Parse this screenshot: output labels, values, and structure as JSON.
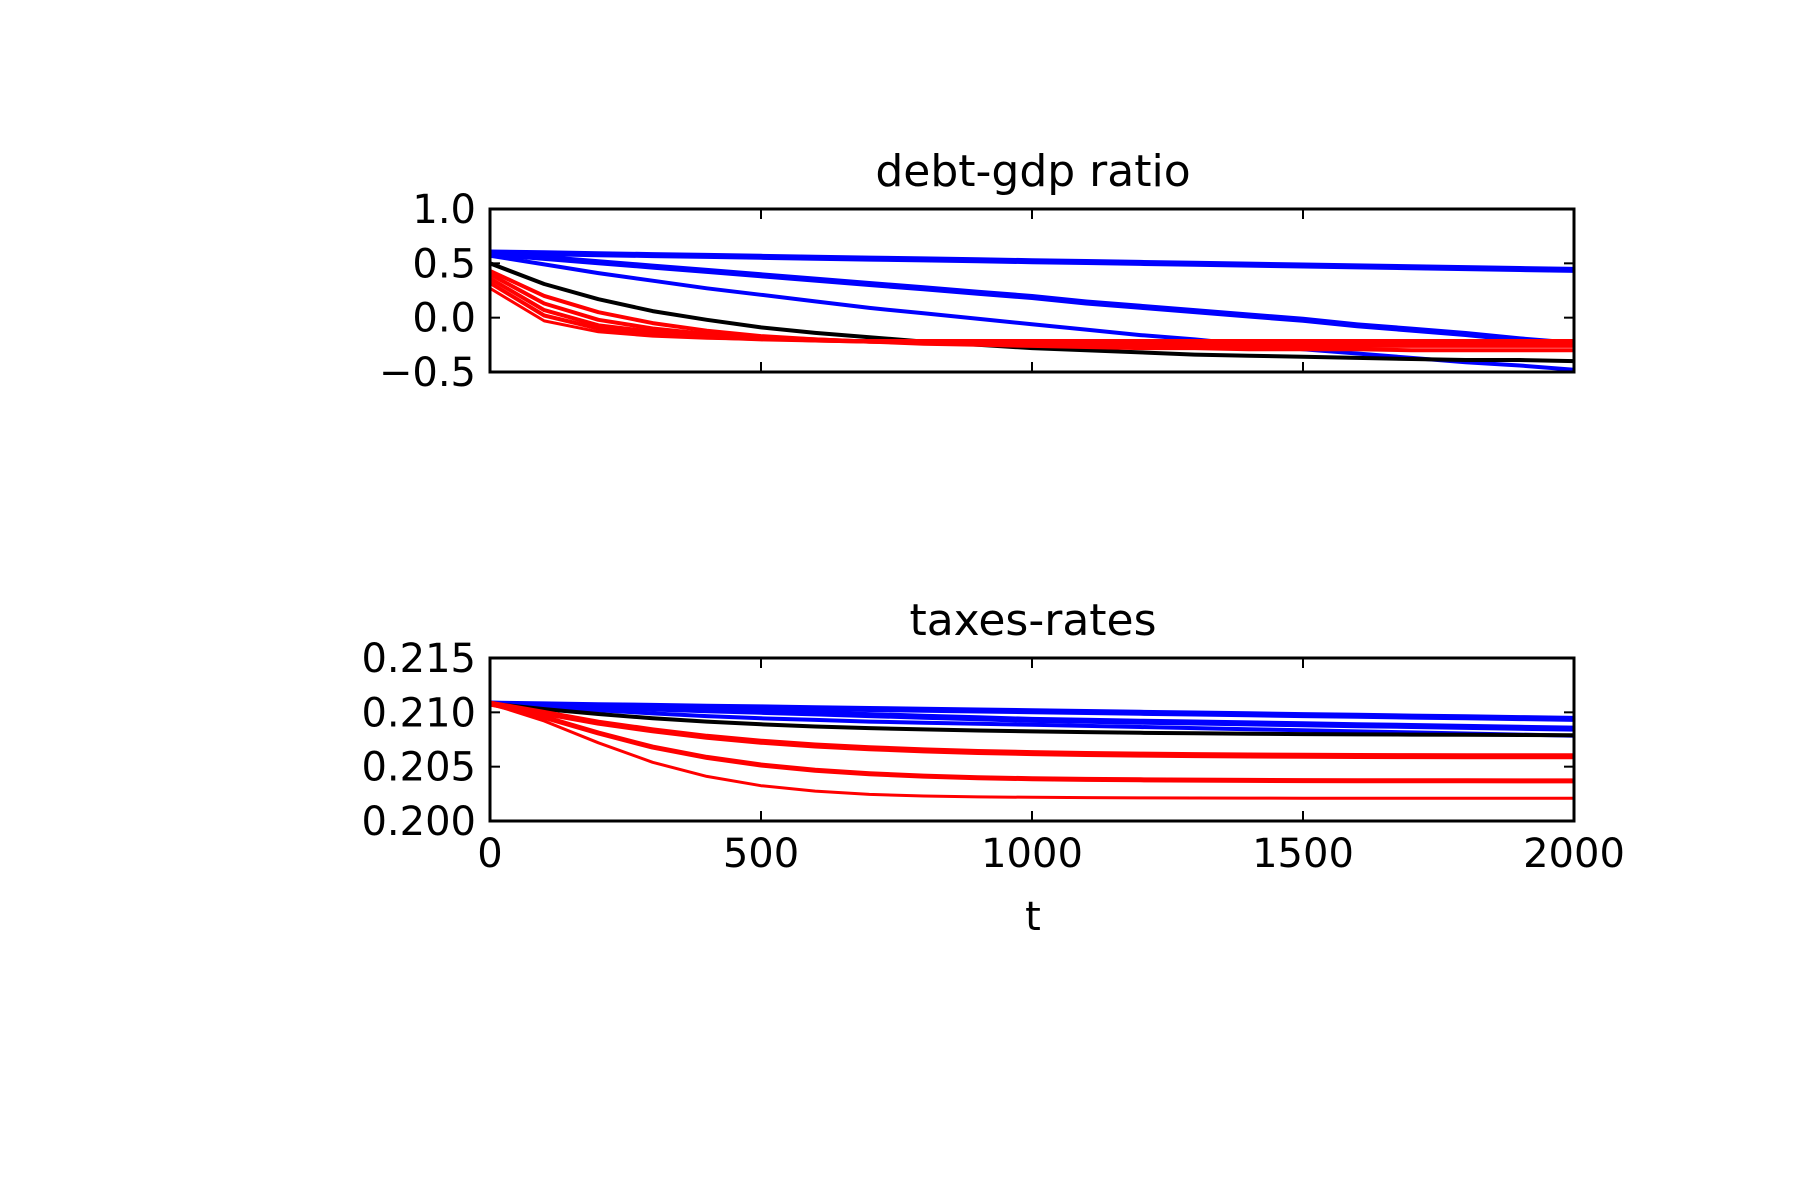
{
  "chart_data": [
    {
      "type": "line",
      "title": "debt-gdp ratio",
      "xlabel": "",
      "ylabel": "",
      "xlim": [
        0,
        2000
      ],
      "ylim": [
        -0.5,
        1.0
      ],
      "xticks": [
        0,
        500,
        1000,
        1500,
        2000
      ],
      "yticks": [
        -0.5,
        0.0,
        0.5,
        1.0
      ],
      "ytick_labels": [
        "−0.5",
        "0.0",
        "0.5",
        "1.0"
      ],
      "show_xtick_labels": false,
      "grid": false,
      "legend": "none",
      "x": [
        0,
        100,
        200,
        300,
        400,
        500,
        600,
        700,
        800,
        900,
        1000,
        1100,
        1200,
        1300,
        1400,
        1500,
        1600,
        1700,
        1800,
        1900,
        2000
      ],
      "series": [
        {
          "color": "#0000ff",
          "width": 6,
          "values": [
            0.6,
            0.592,
            0.584,
            0.576,
            0.568,
            0.56,
            0.552,
            0.544,
            0.536,
            0.528,
            0.52,
            0.512,
            0.504,
            0.496,
            0.488,
            0.48,
            0.472,
            0.464,
            0.456,
            0.448,
            0.44
          ]
        },
        {
          "color": "#0000ff",
          "width": 6,
          "values": [
            0.59,
            0.55,
            0.51,
            0.47,
            0.43,
            0.39,
            0.35,
            0.31,
            0.27,
            0.23,
            0.19,
            0.14,
            0.1,
            0.06,
            0.02,
            -0.02,
            -0.07,
            -0.11,
            -0.15,
            -0.2,
            -0.24
          ]
        },
        {
          "color": "#0000ff",
          "width": 4,
          "values": [
            0.57,
            0.49,
            0.41,
            0.34,
            0.27,
            0.21,
            0.15,
            0.09,
            0.04,
            -0.01,
            -0.06,
            -0.11,
            -0.16,
            -0.2,
            -0.25,
            -0.29,
            -0.33,
            -0.37,
            -0.41,
            -0.44,
            -0.48
          ]
        },
        {
          "color": "#000000",
          "width": 4,
          "values": [
            0.5,
            0.31,
            0.17,
            0.06,
            -0.02,
            -0.09,
            -0.14,
            -0.18,
            -0.22,
            -0.25,
            -0.28,
            -0.3,
            -0.32,
            -0.34,
            -0.35,
            -0.36,
            -0.37,
            -0.38,
            -0.39,
            -0.39,
            -0.4
          ]
        },
        {
          "color": "#ff0000",
          "width": 4,
          "values": [
            0.43,
            0.2,
            0.05,
            -0.05,
            -0.12,
            -0.17,
            -0.2,
            -0.22,
            -0.24,
            -0.25,
            -0.26,
            -0.27,
            -0.28,
            -0.28,
            -0.29,
            -0.29,
            -0.29,
            -0.3,
            -0.3,
            -0.3,
            -0.3
          ]
        },
        {
          "color": "#ff0000",
          "width": 4,
          "values": [
            0.4,
            0.13,
            -0.02,
            -0.1,
            -0.15,
            -0.18,
            -0.2,
            -0.22,
            -0.23,
            -0.24,
            -0.24,
            -0.25,
            -0.25,
            -0.25,
            -0.26,
            -0.26,
            -0.26,
            -0.26,
            -0.26,
            -0.26,
            -0.26
          ]
        },
        {
          "color": "#ff0000",
          "width": 4,
          "values": [
            0.36,
            0.07,
            -0.07,
            -0.13,
            -0.17,
            -0.19,
            -0.21,
            -0.22,
            -0.22,
            -0.23,
            -0.23,
            -0.23,
            -0.23,
            -0.23,
            -0.23,
            -0.23,
            -0.23,
            -0.23,
            -0.23,
            -0.23,
            -0.23
          ]
        },
        {
          "color": "#ff0000",
          "width": 4,
          "values": [
            0.32,
            0.02,
            -0.1,
            -0.15,
            -0.18,
            -0.2,
            -0.21,
            -0.22,
            -0.22,
            -0.22,
            -0.22,
            -0.22,
            -0.22,
            -0.22,
            -0.22,
            -0.22,
            -0.22,
            -0.22,
            -0.22,
            -0.22,
            -0.22
          ]
        },
        {
          "color": "#ff0000",
          "width": 3,
          "values": [
            0.27,
            -0.03,
            -0.13,
            -0.17,
            -0.19,
            -0.2,
            -0.21,
            -0.21,
            -0.21,
            -0.21,
            -0.21,
            -0.21,
            -0.21,
            -0.21,
            -0.21,
            -0.21,
            -0.21,
            -0.21,
            -0.21,
            -0.21,
            -0.21
          ]
        }
      ]
    },
    {
      "type": "line",
      "title": "taxes-rates",
      "xlabel": "t",
      "ylabel": "",
      "xlim": [
        0,
        2000
      ],
      "ylim": [
        0.2,
        0.215
      ],
      "xticks": [
        0,
        500,
        1000,
        1500,
        2000
      ],
      "yticks": [
        0.2,
        0.205,
        0.21,
        0.215
      ],
      "ytick_labels": [
        "0.200",
        "0.205",
        "0.210",
        "0.215"
      ],
      "show_xtick_labels": true,
      "grid": false,
      "legend": "none",
      "x": [
        0,
        100,
        200,
        300,
        400,
        500,
        600,
        700,
        800,
        900,
        1000,
        1100,
        1200,
        1300,
        1400,
        1500,
        1600,
        1700,
        1800,
        1900,
        2000
      ],
      "series": [
        {
          "color": "#0000ff",
          "width": 6,
          "values": [
            0.2108,
            0.21073,
            0.21066,
            0.21059,
            0.21052,
            0.21045,
            0.21038,
            0.21031,
            0.21024,
            0.21017,
            0.2101,
            0.21003,
            0.20996,
            0.20989,
            0.20982,
            0.20975,
            0.20968,
            0.20961,
            0.20954,
            0.20947,
            0.2094
          ]
        },
        {
          "color": "#0000ff",
          "width": 6,
          "values": [
            0.2108,
            0.21065,
            0.2105,
            0.21035,
            0.2102,
            0.21005,
            0.2099,
            0.20975,
            0.2096,
            0.20945,
            0.2093,
            0.20922,
            0.20914,
            0.20906,
            0.20898,
            0.2089,
            0.20882,
            0.20874,
            0.20866,
            0.20858,
            0.2085
          ]
        },
        {
          "color": "#0000ff",
          "width": 4,
          "values": [
            0.2108,
            0.2105,
            0.2102,
            0.2099,
            0.20965,
            0.20945,
            0.2093,
            0.20915,
            0.20905,
            0.20895,
            0.20885,
            0.20875,
            0.20865,
            0.20855,
            0.20845,
            0.20835,
            0.20825,
            0.20815,
            0.20805,
            0.20795,
            0.20785
          ]
        },
        {
          "color": "#000000",
          "width": 4,
          "values": [
            0.2108,
            0.2103,
            0.20985,
            0.20945,
            0.20915,
            0.2089,
            0.2087,
            0.20855,
            0.20843,
            0.20833,
            0.20825,
            0.20818,
            0.20812,
            0.20807,
            0.20803,
            0.208,
            0.20797,
            0.20795,
            0.20793,
            0.20791,
            0.2079
          ]
        },
        {
          "color": "#ff0000",
          "width": 6,
          "values": [
            0.2108,
            0.20995,
            0.20905,
            0.20835,
            0.20775,
            0.2073,
            0.20695,
            0.2067,
            0.2065,
            0.20635,
            0.20625,
            0.20617,
            0.20611,
            0.20606,
            0.20603,
            0.206,
            0.20598,
            0.20597,
            0.20596,
            0.20595,
            0.20595
          ]
        },
        {
          "color": "#ff0000",
          "width": 5,
          "values": [
            0.2108,
            0.20955,
            0.2081,
            0.2068,
            0.20585,
            0.20515,
            0.20467,
            0.20435,
            0.20413,
            0.20398,
            0.20389,
            0.20383,
            0.20379,
            0.20376,
            0.20374,
            0.20372,
            0.20371,
            0.2037,
            0.2037,
            0.20369,
            0.20369
          ]
        },
        {
          "color": "#ff0000",
          "width": 3,
          "values": [
            0.2108,
            0.2092,
            0.2072,
            0.2054,
            0.2041,
            0.20325,
            0.20275,
            0.20245,
            0.2023,
            0.20222,
            0.20218,
            0.20215,
            0.20213,
            0.20212,
            0.20211,
            0.2021,
            0.2021,
            0.2021,
            0.2021,
            0.2021,
            0.2021
          ]
        }
      ]
    }
  ]
}
